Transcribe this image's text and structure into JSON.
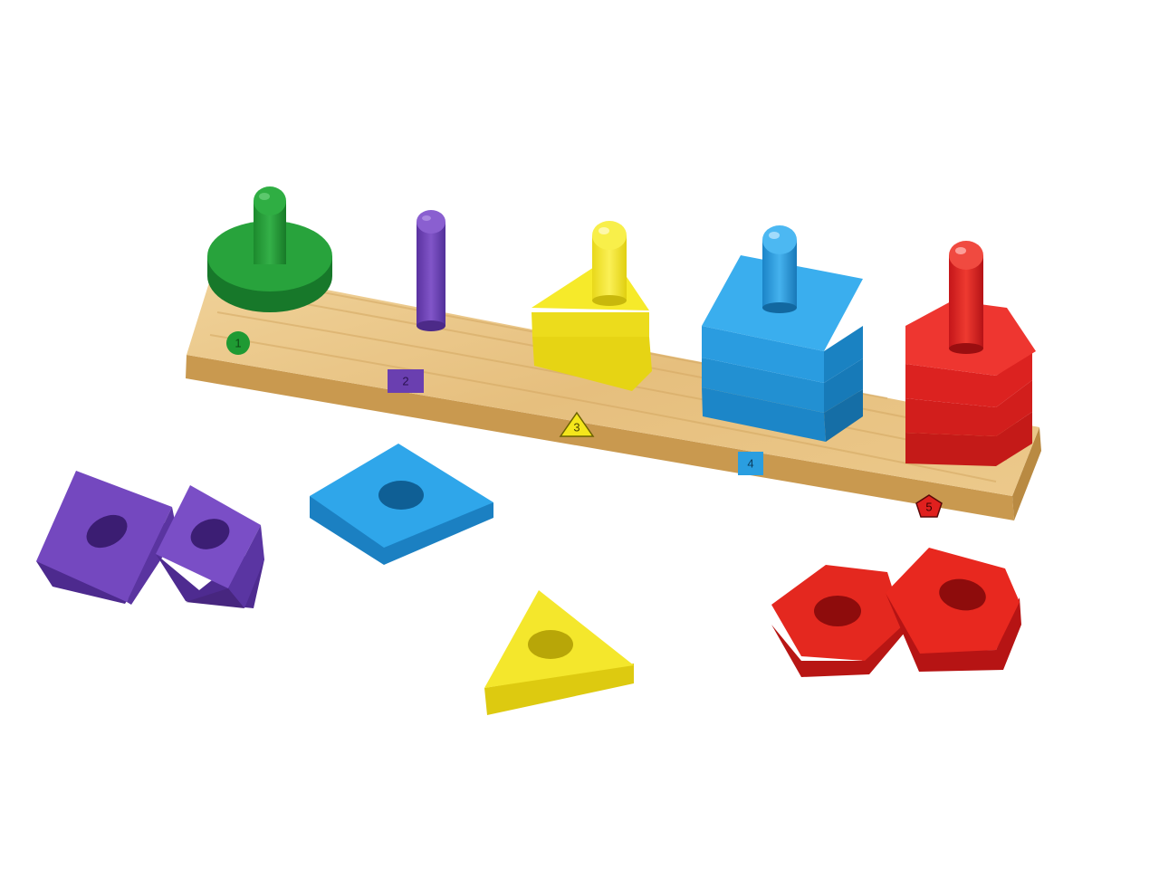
{
  "colors": {
    "background": "#ffffff",
    "wood": "#e7c384",
    "wood_dark": "#c9994f",
    "green": "#1f9a33",
    "purple": "#6a3fb0",
    "yellow": "#f4e61c",
    "blue": "#2a9ee0",
    "red": "#e0201e"
  },
  "board": {
    "labels": {
      "peg1": "1",
      "peg2": "2",
      "peg3": "3",
      "peg4": "4",
      "peg5": "5"
    }
  },
  "pieces": {
    "loose": [
      {
        "shape": "rectangle",
        "color": "purple"
      },
      {
        "shape": "rectangle",
        "color": "purple"
      },
      {
        "shape": "square",
        "color": "blue"
      },
      {
        "shape": "triangle",
        "color": "yellow"
      },
      {
        "shape": "pentagon",
        "color": "red"
      },
      {
        "shape": "pentagon",
        "color": "red"
      }
    ]
  }
}
